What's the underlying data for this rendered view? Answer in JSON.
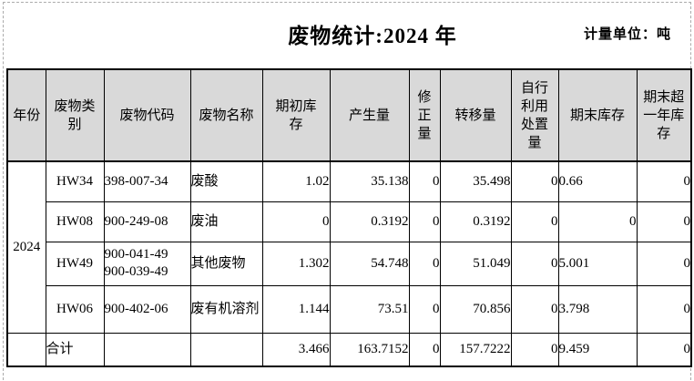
{
  "title": "废物统计:2024 年",
  "unit_label": "计量单位：吨",
  "colors": {
    "header_bg": "#d9d9d9",
    "border": "#000000",
    "page_break_dash": "#ababab"
  },
  "table": {
    "headers": [
      "年份",
      "废物类\n别",
      "废物代码",
      "废物名称",
      "期初库\n存",
      "产生量",
      "修\n正\n量",
      "转移量",
      "自行\n利用\n处置\n量",
      "期末库存",
      "期末超\n一年库\n存"
    ],
    "year": "2024",
    "total_label": "合计",
    "rows": [
      {
        "category": "HW34",
        "code": "398-007-34",
        "name": "废酸",
        "begin_stock": "1.02",
        "produced": "35.138",
        "correction": "0",
        "transferred": "35.498",
        "self_disposal": "0",
        "end_stock": "0.66",
        "end_align": "left",
        "end_over_year": "0"
      },
      {
        "category": "HW08",
        "code": "900-249-08",
        "name": "废油",
        "begin_stock": "0",
        "produced": "0.3192",
        "correction": "0",
        "transferred": "0.3192",
        "self_disposal": "0",
        "end_stock": "0",
        "end_align": "right",
        "end_over_year": "0"
      },
      {
        "category": "HW49",
        "code": "900-041-49\n900-039-49",
        "name": "其他废物",
        "begin_stock": "1.302",
        "produced": "54.748",
        "correction": "0",
        "transferred": "51.049",
        "self_disposal": "0",
        "end_stock": "5.001",
        "end_align": "left",
        "end_over_year": "0"
      },
      {
        "category": "HW06",
        "code": "900-402-06",
        "name": "废有机溶剂",
        "begin_stock": "1.144",
        "produced": "73.51",
        "correction": "0",
        "transferred": "70.856",
        "self_disposal": "0",
        "end_stock": "3.798",
        "end_align": "left",
        "end_over_year": "0"
      }
    ],
    "total": {
      "begin_stock": "3.466",
      "produced": "163.7152",
      "correction": "0",
      "transferred": "157.7222",
      "self_disposal": "0",
      "end_stock": "9.459",
      "end_align": "left",
      "end_over_year": "0"
    }
  }
}
